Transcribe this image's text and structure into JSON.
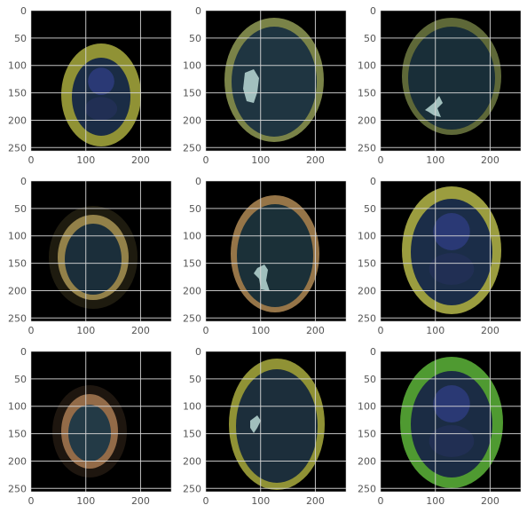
{
  "chart_data": {
    "type": "image-grid",
    "rows": 3,
    "cols": 3,
    "grid": true,
    "panels": [
      {
        "id": "r1c1",
        "xlim": [
          0,
          256
        ],
        "ylim": [
          256,
          0
        ],
        "xticks": [
          "0",
          "100",
          "200"
        ],
        "yticks": [
          "0",
          "50",
          "100",
          "150",
          "200",
          "250"
        ],
        "overlay_mask": false,
        "ring_color": "#a9ab3e",
        "interior_color": "#1a2c45"
      },
      {
        "id": "r1c2",
        "xlim": [
          0,
          256
        ],
        "ylim": [
          256,
          0
        ],
        "xticks": [
          "0",
          "100",
          "200"
        ],
        "yticks": [
          "0",
          "50",
          "100",
          "150",
          "200",
          "250"
        ],
        "overlay_mask": true,
        "mask_color": "#c3e4de",
        "ring_color": "#8f9a55",
        "interior_color": "#1f3541"
      },
      {
        "id": "r1c3",
        "xlim": [
          0,
          256
        ],
        "ylim": [
          256,
          0
        ],
        "xticks": [
          "0",
          "100",
          "200"
        ],
        "yticks": [
          "0",
          "50",
          "100",
          "150",
          "200",
          "250"
        ],
        "overlay_mask": true,
        "mask_color": "#c3e4de",
        "ring_color": "#6e7a42",
        "interior_color": "#192e38"
      },
      {
        "id": "r2c1",
        "xlim": [
          0,
          256
        ],
        "ylim": [
          256,
          0
        ],
        "xticks": [
          "0",
          "100",
          "200"
        ],
        "yticks": [
          "0",
          "50",
          "100",
          "150",
          "200",
          "250"
        ],
        "overlay_mask": false,
        "ring_color": "#a89353",
        "interior_color": "#1b2e3a"
      },
      {
        "id": "r2c2",
        "xlim": [
          0,
          256
        ],
        "ylim": [
          256,
          0
        ],
        "xticks": [
          "0",
          "100",
          "200"
        ],
        "yticks": [
          "0",
          "50",
          "100",
          "150",
          "200",
          "250"
        ],
        "overlay_mask": true,
        "mask_color": "#c3e4de",
        "ring_color": "#b08a55",
        "interior_color": "#1b3038"
      },
      {
        "id": "r2c3",
        "xlim": [
          0,
          256
        ],
        "ylim": [
          256,
          0
        ],
        "xticks": [
          "0",
          "100",
          "200"
        ],
        "yticks": [
          "0",
          "50",
          "100",
          "150",
          "200",
          "250"
        ],
        "overlay_mask": false,
        "ring_color": "#b6b84a",
        "interior_color": "#1b2d48"
      },
      {
        "id": "r3c1",
        "xlim": [
          0,
          256
        ],
        "ylim": [
          256,
          0
        ],
        "xticks": [
          "0",
          "100",
          "200"
        ],
        "yticks": [
          "0",
          "50",
          "100",
          "150",
          "200",
          "250"
        ],
        "overlay_mask": false,
        "ring_color": "#a87a52",
        "interior_color": "#233a46"
      },
      {
        "id": "r3c2",
        "xlim": [
          0,
          256
        ],
        "ylim": [
          256,
          0
        ],
        "xticks": [
          "0",
          "100",
          "200"
        ],
        "yticks": [
          "0",
          "50",
          "100",
          "150",
          "200",
          "250"
        ],
        "overlay_mask": true,
        "mask_color": "#c3e4de",
        "ring_color": "#a9ab3e",
        "interior_color": "#1c2e3b"
      },
      {
        "id": "r3c3",
        "xlim": [
          0,
          256
        ],
        "ylim": [
          256,
          0
        ],
        "xticks": [
          "0",
          "100",
          "200"
        ],
        "yticks": [
          "0",
          "50",
          "100",
          "150",
          "200",
          "250"
        ],
        "overlay_mask": false,
        "ring_color": "#5db53a",
        "interior_color": "#1b2c44"
      }
    ]
  },
  "colors": {
    "panel_background": "#000000",
    "grid_line": "#d8d8d8",
    "tick_text": "#555555",
    "frame": "#cfcfcf"
  }
}
